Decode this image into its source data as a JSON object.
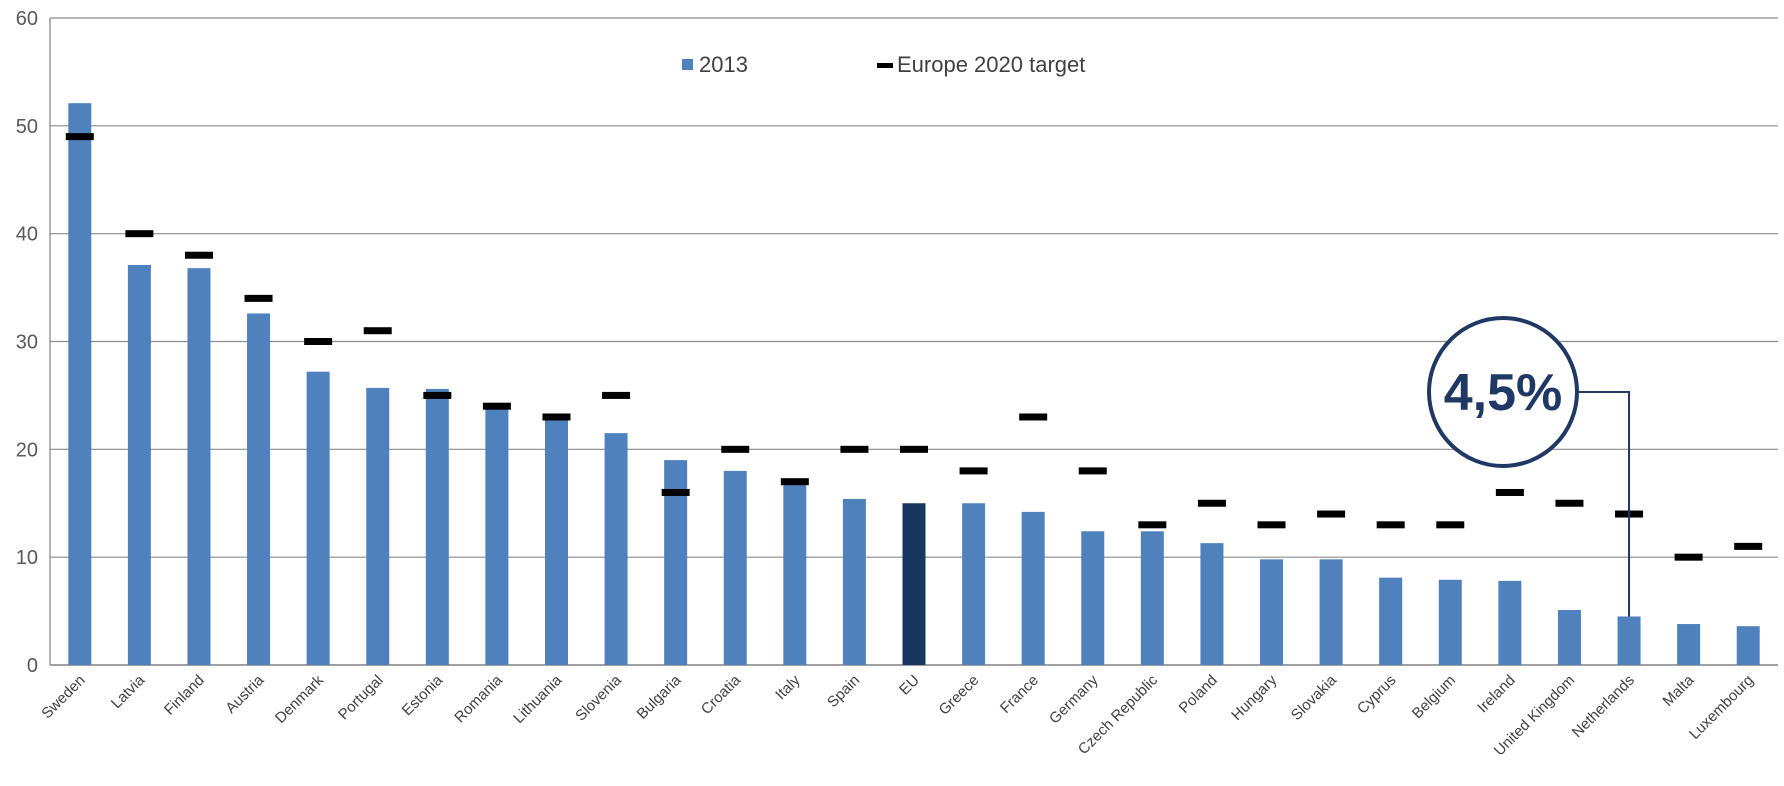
{
  "chart_data": {
    "type": "bar",
    "title": "",
    "xlabel": "",
    "ylabel": "",
    "ylim": [
      0,
      60
    ],
    "yticks": [
      0,
      10,
      20,
      30,
      40,
      50,
      60
    ],
    "grid": true,
    "legend_position": "top-center",
    "categories": [
      "Sweden",
      "Latvia",
      "Finland",
      "Austria",
      "Denmark",
      "Portugal",
      "Estonia",
      "Romania",
      "Lithuania",
      "Slovenia",
      "Bulgaria",
      "Croatia",
      "Italy",
      "Spain",
      "EU",
      "Greece",
      "France",
      "Germany",
      "Czech Republic",
      "Poland",
      "Hungary",
      "Slovakia",
      "Cyprus",
      "Belgium",
      "Ireland",
      "United Kingdom",
      "Netherlands",
      "Malta",
      "Luxembourg"
    ],
    "series": [
      {
        "name": "2013",
        "kind": "bar",
        "color": "#4F81BD",
        "highlight": {
          "category": "EU",
          "color": "#17375E"
        },
        "values": [
          52.1,
          37.1,
          36.8,
          32.6,
          27.2,
          25.7,
          25.6,
          23.9,
          23.0,
          21.5,
          19.0,
          18.0,
          16.7,
          15.4,
          15.0,
          15.0,
          14.2,
          12.4,
          12.4,
          11.3,
          9.8,
          9.8,
          8.1,
          7.9,
          7.8,
          5.1,
          4.5,
          3.8,
          3.6
        ]
      },
      {
        "name": "Europe 2020 target",
        "kind": "marker",
        "color": "#000000",
        "values": [
          49,
          40,
          38,
          34,
          30,
          31,
          25,
          24,
          23,
          25,
          16,
          20,
          17,
          20,
          20,
          18,
          23,
          18,
          13,
          15,
          13,
          14,
          13,
          13,
          16,
          15,
          14,
          10,
          11
        ]
      }
    ],
    "annotations": [
      {
        "text": "4,5%",
        "category": "Netherlands",
        "value": 4.5,
        "color": "#1F3864"
      }
    ]
  }
}
